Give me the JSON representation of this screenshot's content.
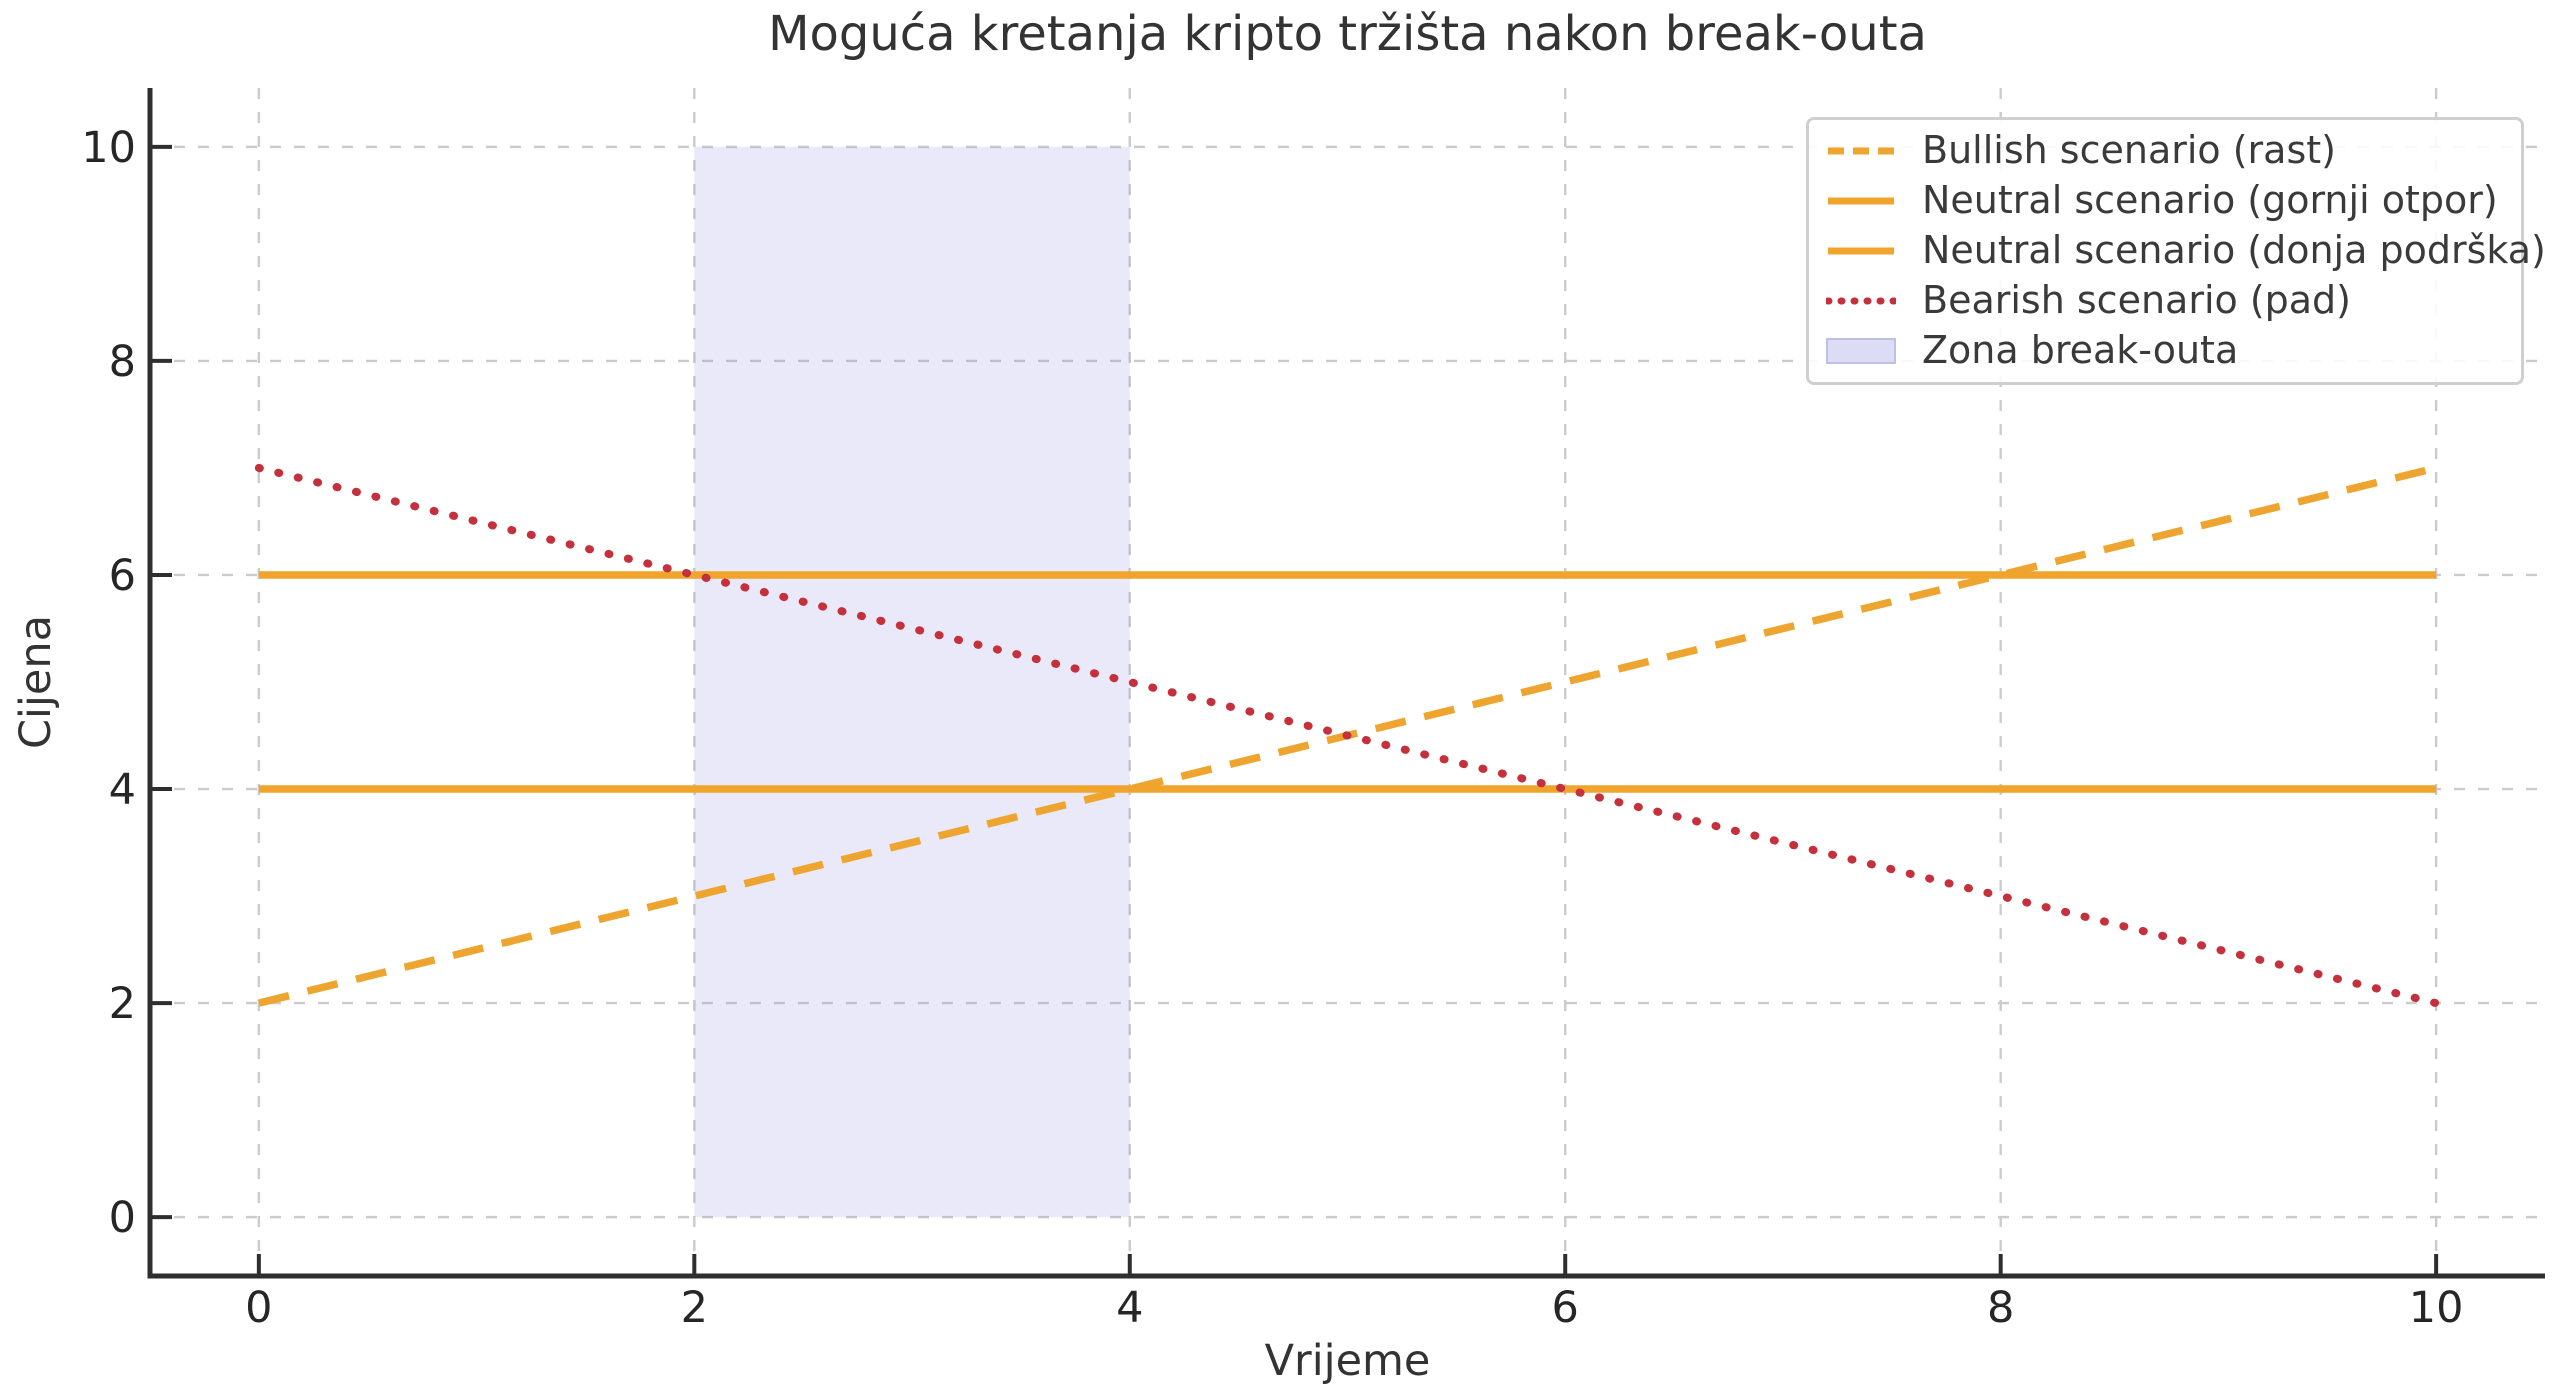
{
  "chart_data": {
    "type": "line",
    "title": "Moguća kretanja kripto tržišta nakon break-outa",
    "xlabel": "Vrijeme",
    "ylabel": "Cijena",
    "xlim": [
      -0.5,
      10.5
    ],
    "ylim": [
      -0.55,
      10.55
    ],
    "xticks": [
      0,
      2,
      4,
      6,
      8,
      10
    ],
    "yticks": [
      0,
      2,
      4,
      6,
      8,
      10
    ],
    "grid": true,
    "legend_position": "upper right",
    "series": [
      {
        "name": "Bullish scenario (rast)",
        "style": "dashed",
        "color": "#EDA52F",
        "x": [
          0,
          10
        ],
        "y": [
          2,
          7
        ]
      },
      {
        "name": "Neutral scenario (gornji otpor)",
        "style": "solid",
        "color": "#F0A42C",
        "x": [
          0,
          10
        ],
        "y": [
          6,
          6
        ]
      },
      {
        "name": "Neutral scenario (donja podrška)",
        "style": "solid",
        "color": "#F0A42C",
        "x": [
          0,
          10
        ],
        "y": [
          4,
          4
        ]
      },
      {
        "name": "Bearish scenario (pad)",
        "style": "dotted",
        "color": "#C4303B",
        "x": [
          0,
          10
        ],
        "y": [
          7,
          2
        ]
      }
    ],
    "zone": {
      "name": "Zona break-outa",
      "x_start": 2,
      "x_end": 4,
      "y_start": 0,
      "y_end": 10,
      "fill": "#8585DD",
      "fill_opacity": 0.18,
      "legend_fill": "#DCDCF5",
      "legend_edge": "#C0C0E6"
    },
    "style": {
      "background": "#FFFFFF",
      "grid_color": "#CBCBCB",
      "spine_color": "#2E2E2E",
      "tick_label_color": "#262626",
      "title_color": "#333333",
      "legend_border": "#CFCFCF",
      "legend_text": "#3A3A3A"
    }
  }
}
